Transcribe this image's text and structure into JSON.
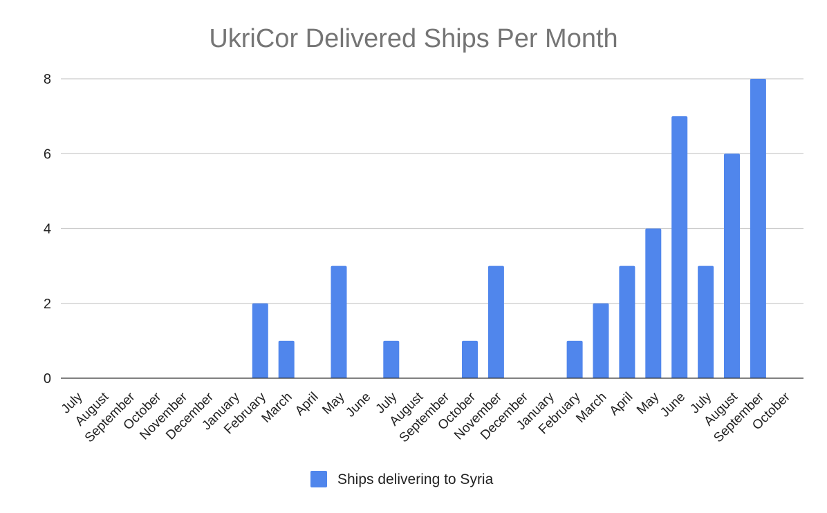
{
  "chart_data": {
    "type": "bar",
    "title": "UkriCor Delivered Ships Per Month",
    "xlabel": "",
    "ylabel": "",
    "ylim": [
      0,
      8
    ],
    "yticks": [
      0,
      2,
      4,
      6,
      8
    ],
    "grid": true,
    "legend_position": "bottom",
    "categories": [
      "July",
      "August",
      "September",
      "October",
      "November",
      "December",
      "January",
      "February",
      "March",
      "April",
      "May",
      "June",
      "July",
      "August",
      "September",
      "October",
      "November",
      "December",
      "January",
      "February",
      "March",
      "April",
      "May",
      "June",
      "July",
      "August",
      "September",
      "October"
    ],
    "series": [
      {
        "name": "Ships delivering to Syria",
        "color": "#5086ec",
        "values": [
          0,
          0,
          0,
          0,
          0,
          0,
          0,
          2,
          1,
          0,
          3,
          0,
          1,
          0,
          0,
          1,
          3,
          0,
          0,
          1,
          2,
          3,
          4,
          7,
          3,
          6,
          8,
          0
        ]
      }
    ]
  }
}
